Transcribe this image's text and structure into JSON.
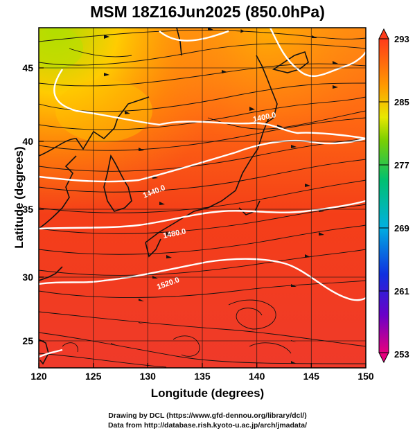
{
  "title": "MSM 18Z16Jun2025 (850.0hPa)",
  "axes": {
    "xlabel": "Longitude (degrees)",
    "ylabel": "Latitude  (degrees)",
    "xticks": [
      "120",
      "125",
      "130",
      "135",
      "140",
      "145",
      "150"
    ],
    "yticks": [
      "25",
      "30",
      "35",
      "40",
      "45"
    ],
    "xlim": [
      120,
      150
    ],
    "ylim": [
      22.5,
      48
    ]
  },
  "colorbar": {
    "labels": [
      "293",
      "285",
      "277",
      "269",
      "261",
      "253"
    ],
    "range": [
      253,
      293
    ],
    "colors": [
      "#e6007e",
      "#6a00c8",
      "#1030e0",
      "#00b0e0",
      "#00c070",
      "#7ed000",
      "#e8e800",
      "#ff9a00",
      "#ff3b1a"
    ]
  },
  "contours": {
    "labels": [
      "1400.0",
      "1440.0",
      "1480.0",
      "1520.0"
    ]
  },
  "credits": {
    "line1": "Drawing by DCL (https://www.gfd-dennou.org/library/dcl/)",
    "line2": "Data from http://database.rish.kyoto-u.ac.jp/arch/jmadata/"
  }
}
